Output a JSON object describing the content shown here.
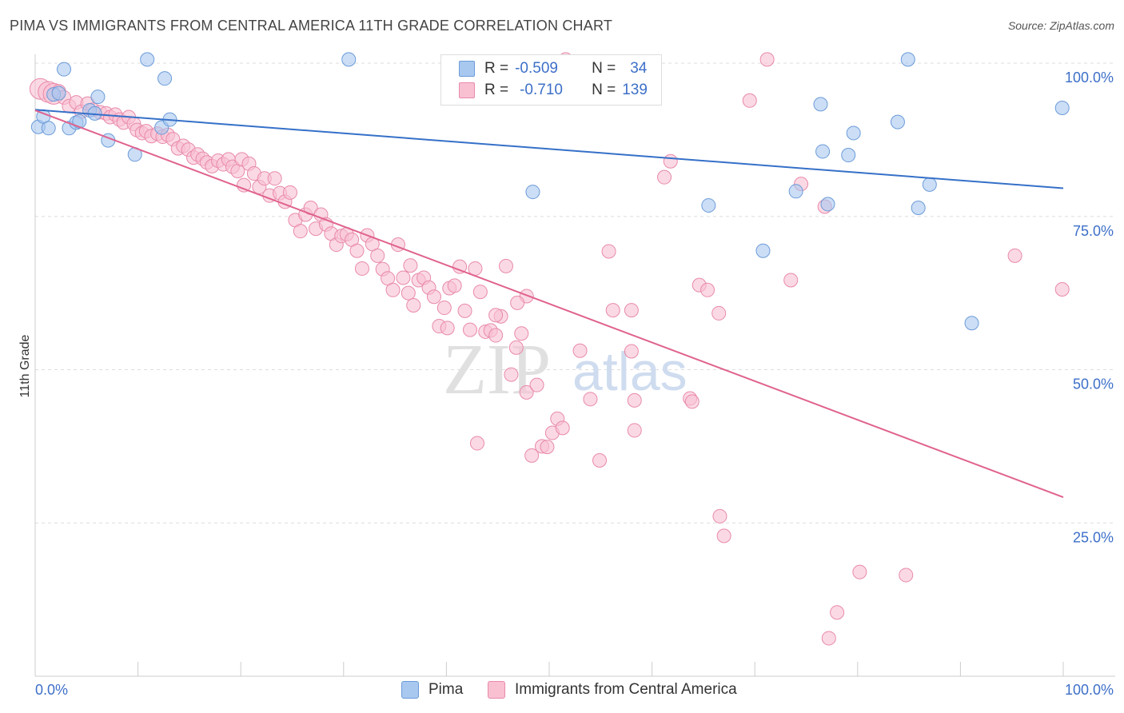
{
  "title": "PIMA VS IMMIGRANTS FROM CENTRAL AMERICA 11TH GRADE CORRELATION CHART",
  "source": "Source: ZipAtlas.com",
  "watermark": {
    "zip": "ZIP",
    "atlas": "atlas"
  },
  "legend": {
    "rows": [
      {
        "r_label": "R =",
        "r_value": "-0.509",
        "n_label": "N =",
        "n_value": "34",
        "color": "#a8c8f0",
        "border": "#6c9bd8"
      },
      {
        "r_label": "R =",
        "r_value": "-0.710",
        "n_label": "N =",
        "n_value": "139",
        "color": "#f9c0d2",
        "border": "#e88aaa"
      }
    ]
  },
  "bottom_legend": [
    {
      "label": "Pima",
      "color": "#a8c8f0",
      "border": "#6c9bd8"
    },
    {
      "label": "Immigrants from Central America",
      "color": "#f9c0d2",
      "border": "#e88aaa"
    }
  ],
  "chart_data": {
    "type": "scatter",
    "title": "PIMA VS IMMIGRANTS FROM CENTRAL AMERICA 11TH GRADE CORRELATION CHART",
    "xlabel": "",
    "ylabel": "11th Grade",
    "xlim": [
      0,
      100
    ],
    "ylim": [
      0,
      100
    ],
    "x_tick_labels": {
      "min": "0.0%",
      "max": "100.0%"
    },
    "y_ticks": [
      {
        "value": 25,
        "label": "25.0%"
      },
      {
        "value": 50,
        "label": "50.0%"
      },
      {
        "value": 75,
        "label": "75.0%"
      },
      {
        "value": 100,
        "label": "100.0%"
      }
    ],
    "grid": true,
    "series": [
      {
        "name": "Pima",
        "color": "#6c9bd8",
        "fill": "#a8c8f0",
        "trend": {
          "x": [
            0,
            100
          ],
          "y": [
            92.4,
            79.6
          ],
          "color": "#3570c8"
        },
        "points": [
          [
            0.3,
            89.6
          ],
          [
            0.8,
            91.3
          ],
          [
            1.3,
            89.4
          ],
          [
            1.8,
            94.9
          ],
          [
            2.3,
            95.1
          ],
          [
            2.8,
            99.0
          ],
          [
            3.3,
            89.4
          ],
          [
            4.0,
            90.3
          ],
          [
            4.3,
            90.5
          ],
          [
            5.3,
            92.3
          ],
          [
            5.8,
            91.8
          ],
          [
            6.1,
            94.5
          ],
          [
            7.1,
            87.4
          ],
          [
            9.7,
            85.1
          ],
          [
            10.9,
            100.6
          ],
          [
            12.3,
            89.5
          ],
          [
            12.6,
            97.5
          ],
          [
            13.1,
            90.8
          ],
          [
            30.5,
            100.6
          ],
          [
            48.4,
            79.0
          ],
          [
            65.5,
            76.8
          ],
          [
            70.8,
            69.4
          ],
          [
            74.0,
            79.1
          ],
          [
            76.4,
            93.3
          ],
          [
            76.6,
            85.6
          ],
          [
            77.1,
            77.0
          ],
          [
            79.1,
            85.0
          ],
          [
            79.6,
            88.6
          ],
          [
            83.9,
            90.4
          ],
          [
            84.9,
            100.6
          ],
          [
            85.9,
            76.4
          ],
          [
            87.0,
            80.2
          ],
          [
            91.1,
            57.6
          ],
          [
            99.9,
            92.7
          ]
        ]
      },
      {
        "name": "Immigrants from Central America",
        "color": "#e88aaa",
        "fill": "#f9c0d2",
        "trend": {
          "x": [
            0,
            100
          ],
          "y": [
            92.3,
            29.2
          ],
          "color": "#e0628e"
        },
        "points": [
          [
            0.5,
            95.8
          ],
          [
            1.3,
            95.3
          ],
          [
            1.8,
            95.0
          ],
          [
            2.3,
            95.4
          ],
          [
            2.8,
            94.4
          ],
          [
            3.3,
            93.0
          ],
          [
            4.0,
            93.6
          ],
          [
            4.5,
            92.1
          ],
          [
            5.1,
            93.4
          ],
          [
            5.6,
            92.4
          ],
          [
            6.3,
            92.0
          ],
          [
            6.9,
            91.8
          ],
          [
            7.3,
            91.2
          ],
          [
            7.8,
            91.6
          ],
          [
            8.2,
            90.8
          ],
          [
            8.6,
            90.3
          ],
          [
            9.1,
            91.2
          ],
          [
            9.6,
            90.1
          ],
          [
            9.9,
            89.1
          ],
          [
            10.4,
            88.6
          ],
          [
            10.8,
            88.9
          ],
          [
            11.3,
            88.1
          ],
          [
            11.9,
            88.5
          ],
          [
            12.4,
            88.0
          ],
          [
            12.9,
            88.3
          ],
          [
            13.4,
            87.6
          ],
          [
            13.9,
            86.1
          ],
          [
            14.4,
            86.5
          ],
          [
            14.9,
            85.9
          ],
          [
            15.4,
            84.6
          ],
          [
            15.8,
            85.1
          ],
          [
            16.3,
            84.4
          ],
          [
            16.7,
            83.8
          ],
          [
            17.2,
            83.2
          ],
          [
            17.8,
            84.1
          ],
          [
            18.3,
            83.5
          ],
          [
            18.8,
            84.3
          ],
          [
            19.2,
            83.1
          ],
          [
            19.7,
            82.4
          ],
          [
            20.1,
            84.3
          ],
          [
            20.3,
            80.1
          ],
          [
            20.8,
            83.6
          ],
          [
            21.3,
            82.0
          ],
          [
            21.8,
            79.8
          ],
          [
            22.3,
            81.2
          ],
          [
            22.8,
            78.4
          ],
          [
            23.3,
            81.2
          ],
          [
            23.8,
            78.8
          ],
          [
            24.3,
            77.4
          ],
          [
            24.8,
            78.9
          ],
          [
            25.3,
            74.4
          ],
          [
            25.8,
            72.6
          ],
          [
            26.3,
            75.3
          ],
          [
            26.8,
            76.4
          ],
          [
            27.3,
            73.0
          ],
          [
            27.8,
            75.3
          ],
          [
            28.3,
            73.7
          ],
          [
            28.8,
            72.2
          ],
          [
            29.3,
            70.4
          ],
          [
            29.8,
            71.8
          ],
          [
            30.3,
            72.1
          ],
          [
            30.8,
            71.2
          ],
          [
            31.3,
            69.4
          ],
          [
            31.8,
            66.5
          ],
          [
            32.3,
            71.9
          ],
          [
            32.8,
            70.5
          ],
          [
            33.3,
            68.6
          ],
          [
            33.8,
            66.4
          ],
          [
            34.3,
            64.9
          ],
          [
            34.8,
            63.0
          ],
          [
            35.3,
            70.4
          ],
          [
            35.8,
            65.0
          ],
          [
            36.3,
            62.5
          ],
          [
            36.8,
            60.5
          ],
          [
            37.3,
            64.6
          ],
          [
            37.8,
            65.0
          ],
          [
            38.3,
            63.4
          ],
          [
            38.8,
            61.9
          ],
          [
            39.3,
            57.1
          ],
          [
            39.8,
            60.1
          ],
          [
            40.3,
            63.3
          ],
          [
            40.8,
            63.7
          ],
          [
            41.3,
            66.8
          ],
          [
            41.8,
            59.6
          ],
          [
            42.3,
            56.5
          ],
          [
            42.8,
            66.5
          ],
          [
            43.3,
            62.7
          ],
          [
            43.8,
            56.2
          ],
          [
            44.3,
            56.4
          ],
          [
            44.8,
            55.6
          ],
          [
            45.3,
            58.7
          ],
          [
            45.8,
            66.9
          ],
          [
            46.3,
            49.2
          ],
          [
            46.8,
            53.6
          ],
          [
            47.3,
            55.9
          ],
          [
            47.8,
            46.3
          ],
          [
            48.3,
            36.0
          ],
          [
            48.8,
            47.5
          ],
          [
            49.3,
            37.5
          ],
          [
            49.8,
            37.4
          ],
          [
            50.3,
            39.7
          ],
          [
            50.8,
            42.0
          ],
          [
            51.3,
            40.5
          ],
          [
            53.0,
            53.1
          ],
          [
            54.0,
            45.2
          ],
          [
            54.9,
            35.2
          ],
          [
            55.8,
            69.3
          ],
          [
            56.2,
            59.7
          ],
          [
            58.0,
            59.7
          ],
          [
            58.3,
            40.1
          ],
          [
            58.3,
            45.0
          ],
          [
            61.2,
            81.4
          ],
          [
            61.8,
            84.0
          ],
          [
            63.7,
            45.3
          ],
          [
            63.9,
            44.8
          ],
          [
            64.6,
            63.8
          ],
          [
            65.4,
            63.0
          ],
          [
            66.5,
            59.2
          ],
          [
            66.6,
            26.1
          ],
          [
            67.0,
            22.9
          ],
          [
            69.5,
            93.9
          ],
          [
            71.2,
            100.6
          ],
          [
            73.5,
            64.6
          ],
          [
            74.5,
            80.3
          ],
          [
            76.8,
            76.6
          ],
          [
            77.2,
            6.2
          ],
          [
            78.0,
            10.4
          ],
          [
            80.2,
            17.0
          ],
          [
            84.7,
            16.5
          ],
          [
            95.3,
            68.6
          ],
          [
            99.9,
            63.1
          ],
          [
            43.0,
            38.0
          ],
          [
            44.8,
            58.9
          ],
          [
            47.8,
            62.0
          ],
          [
            36.5,
            67.0
          ],
          [
            40.1,
            56.8
          ],
          [
            46.9,
            60.9
          ],
          [
            51.6,
            100.6
          ],
          [
            58.0,
            53.0
          ]
        ]
      }
    ]
  }
}
